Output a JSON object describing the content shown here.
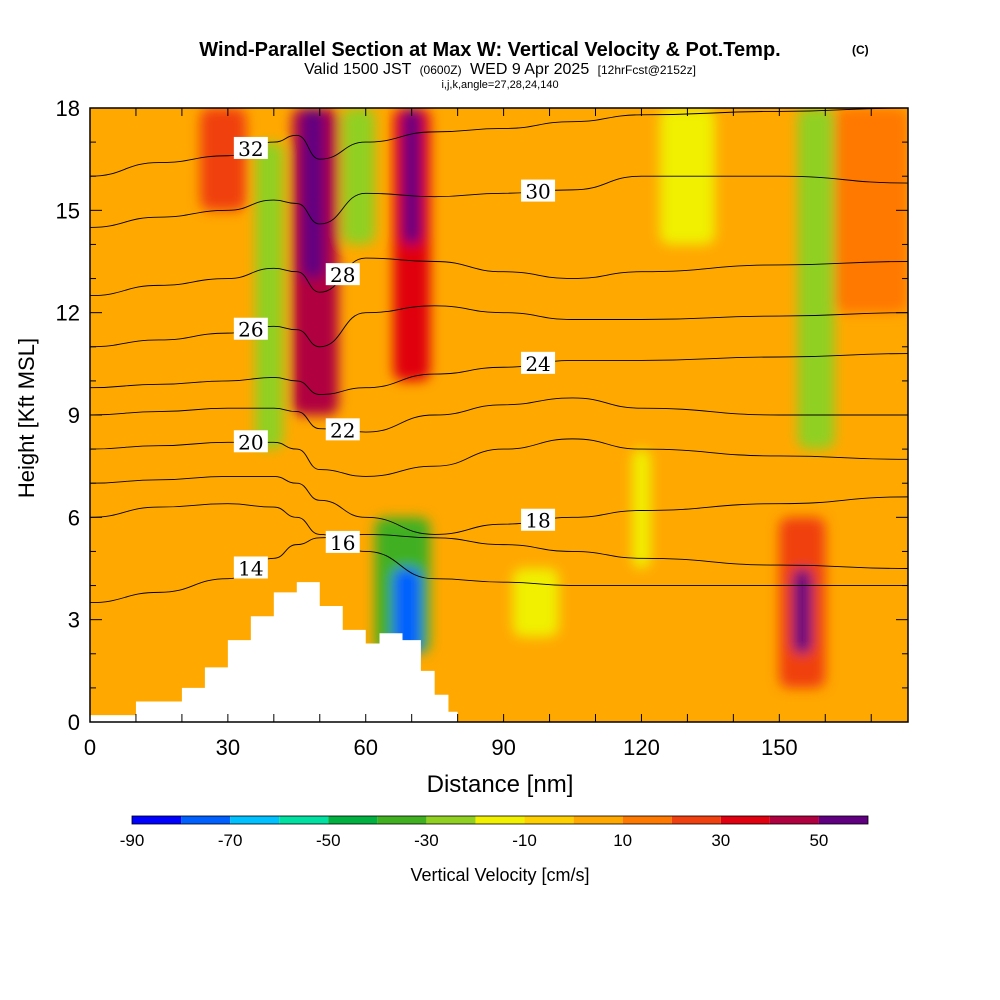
{
  "chart_data": {
    "type": "heatmap",
    "title": "Wind-Parallel Section at Max W: Vertical Velocity & Pot.Temp.",
    "title_mark": "(C)",
    "subtitle": {
      "valid_prefix": "Valid 1500 JST",
      "utc": "(0600Z)",
      "date": "WED 9 Apr 2025",
      "forecast": "[12hrFcst@2152z]"
    },
    "grid_info": "i,j,k,angle=27,28,24,140",
    "xlabel": "Distance [nm]",
    "ylabel": "Height [Kft MSL]",
    "xlim": [
      0,
      178
    ],
    "ylim": [
      0,
      18
    ],
    "x_ticks": [
      "0",
      "30",
      "60",
      "90",
      "120",
      "150"
    ],
    "x_tick_values": [
      0,
      30,
      60,
      90,
      120,
      150
    ],
    "y_ticks": [
      "0",
      "3",
      "6",
      "9",
      "12",
      "15",
      "18"
    ],
    "y_tick_values": [
      0,
      3,
      6,
      9,
      12,
      15,
      18
    ],
    "colorbar": {
      "label": "Vertical Velocity [cm/s]",
      "levels": [
        -90,
        -80,
        -70,
        -60,
        -50,
        -40,
        -30,
        -20,
        -10,
        0,
        10,
        20,
        30,
        40,
        50,
        60
      ],
      "tick_labels": [
        "-90",
        "-70",
        "-50",
        "-30",
        "-10",
        "10",
        "30",
        "50"
      ],
      "tick_values": [
        -90,
        -70,
        -50,
        -30,
        -10,
        10,
        30,
        50
      ],
      "colors": [
        "#0000ff",
        "#0060ff",
        "#00c0ff",
        "#00e0a0",
        "#00b040",
        "#40b020",
        "#90d020",
        "#f0f000",
        "#ffd000",
        "#ffa800",
        "#ff7800",
        "#f04010",
        "#e00010",
        "#b00040",
        "#600080"
      ]
    },
    "background_velocity": 0,
    "velocity_regions": [
      {
        "name": "updraft-column-1",
        "x": [
          44,
          54
        ],
        "y": [
          9,
          18
        ],
        "value": 40
      },
      {
        "name": "updraft-column-1-core",
        "x": [
          46,
          51
        ],
        "y": [
          13,
          18
        ],
        "value": 55
      },
      {
        "name": "updraft-column-2",
        "x": [
          66,
          74
        ],
        "y": [
          10,
          18
        ],
        "value": 30
      },
      {
        "name": "updraft-column-2-core",
        "x": [
          68,
          72
        ],
        "y": [
          14,
          18
        ],
        "value": 50
      },
      {
        "name": "updraft-left-top",
        "x": [
          24,
          34
        ],
        "y": [
          15,
          18
        ],
        "value": 20
      },
      {
        "name": "updraft-right-top",
        "x": [
          162,
          178
        ],
        "y": [
          12,
          18
        ],
        "value": 10
      },
      {
        "name": "updraft-surface-right",
        "x": [
          150,
          160
        ],
        "y": [
          1,
          6
        ],
        "value": 20
      },
      {
        "name": "updraft-surface-right-core",
        "x": [
          153,
          157
        ],
        "y": [
          2,
          4.5
        ],
        "value": 50
      },
      {
        "name": "downdraft-left-column",
        "x": [
          36,
          42
        ],
        "y": [
          8,
          17
        ],
        "value": -30
      },
      {
        "name": "downdraft-lee-slope",
        "x": [
          62,
          74
        ],
        "y": [
          2,
          6
        ],
        "value": -40
      },
      {
        "name": "downdraft-lee-core",
        "x": [
          66,
          72
        ],
        "y": [
          2,
          4.5
        ],
        "value": -80
      },
      {
        "name": "downdraft-mid-band",
        "x": [
          55,
          62
        ],
        "y": [
          14,
          18
        ],
        "value": -30
      },
      {
        "name": "downdraft-right-column",
        "x": [
          154,
          162
        ],
        "y": [
          8,
          18
        ],
        "value": -30
      },
      {
        "name": "downdraft-upper-right",
        "x": [
          124,
          136
        ],
        "y": [
          14,
          18
        ],
        "value": -20
      },
      {
        "name": "downdraft-low-right",
        "x": [
          92,
          102
        ],
        "y": [
          2.5,
          4.5
        ],
        "value": -20
      },
      {
        "name": "downdraft-right-strip",
        "x": [
          118,
          122
        ],
        "y": [
          4.5,
          8
        ],
        "value": -20
      }
    ],
    "theta_contours": [
      {
        "label": "14",
        "y": [
          3.5,
          3.8,
          4.2,
          4.8,
          5.2,
          5.4,
          5.5,
          5.4,
          5.2,
          5.0,
          4.8,
          4.6,
          4.5
        ]
      },
      {
        "label": "16",
        "y": [
          6.0,
          6.3,
          6.4,
          6.3,
          6.0,
          5.5,
          5.0,
          4.2,
          4.1,
          4.0,
          4.0,
          4.0,
          4.0
        ]
      },
      {
        "label": "18",
        "y": [
          7.0,
          7.1,
          7.2,
          7.2,
          7.0,
          6.5,
          6.0,
          5.5,
          5.8,
          6.0,
          6.2,
          6.4,
          6.6
        ]
      },
      {
        "label": "20",
        "y": [
          8.0,
          8.1,
          8.2,
          8.2,
          8.0,
          7.4,
          7.2,
          7.5,
          8.0,
          8.3,
          8.0,
          7.8,
          7.7
        ]
      },
      {
        "label": "22",
        "y": [
          9.0,
          9.1,
          9.2,
          9.2,
          9.1,
          8.6,
          8.5,
          9.0,
          9.3,
          9.5,
          9.2,
          9.0,
          9.0
        ]
      },
      {
        "label": "24",
        "y": [
          9.8,
          9.9,
          10.0,
          10.1,
          10.0,
          9.6,
          9.8,
          10.2,
          10.4,
          10.6,
          10.6,
          10.7,
          10.8
        ]
      },
      {
        "label": "26",
        "y": [
          11.0,
          11.2,
          11.4,
          11.6,
          11.5,
          11.0,
          12.0,
          12.2,
          12.0,
          11.8,
          11.8,
          11.9,
          12.0
        ]
      },
      {
        "label": "28",
        "y": [
          12.5,
          12.8,
          13.0,
          13.3,
          13.2,
          12.6,
          13.6,
          13.5,
          13.2,
          13.0,
          13.2,
          13.4,
          13.5
        ]
      },
      {
        "label": "30",
        "y": [
          14.5,
          14.8,
          15.0,
          15.3,
          15.2,
          14.6,
          15.5,
          15.4,
          15.5,
          15.6,
          16.0,
          16.0,
          15.8
        ]
      },
      {
        "label": "32",
        "y": [
          16.0,
          16.4,
          16.6,
          17.0,
          17.2,
          16.5,
          17.0,
          17.3,
          17.4,
          17.6,
          17.8,
          17.9,
          18.0
        ]
      }
    ],
    "contour_x": [
      0,
      15,
      30,
      40,
      45,
      50,
      60,
      75,
      90,
      105,
      120,
      150,
      178
    ],
    "terrain": {
      "x": [
        0,
        10,
        10,
        20,
        20,
        25,
        25,
        30,
        30,
        35,
        35,
        40,
        40,
        45,
        45,
        50,
        50,
        55,
        55,
        60,
        60,
        63,
        63,
        68,
        68,
        72,
        72,
        75,
        75,
        78,
        78,
        80
      ],
      "y": [
        0.2,
        0.2,
        0.6,
        0.6,
        1.0,
        1.0,
        1.6,
        1.6,
        2.4,
        2.4,
        3.1,
        3.1,
        3.8,
        3.8,
        4.1,
        4.1,
        3.4,
        3.4,
        2.7,
        2.7,
        2.3,
        2.3,
        2.6,
        2.6,
        2.4,
        2.4,
        1.5,
        1.5,
        0.8,
        0.8,
        0.3,
        0.3
      ]
    }
  }
}
